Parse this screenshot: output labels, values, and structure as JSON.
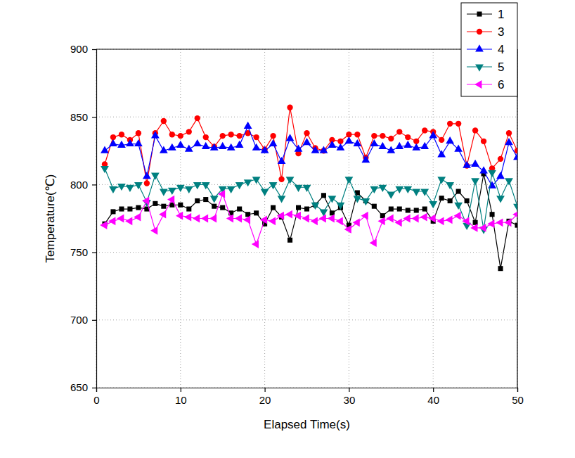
{
  "chart_data": {
    "type": "line",
    "x_label": "Elapsed Time(s)",
    "y_label": "Temperature(℃)",
    "x": [
      1,
      2,
      3,
      4,
      5,
      6,
      7,
      8,
      9,
      10,
      11,
      12,
      13,
      14,
      15,
      16,
      17,
      18,
      19,
      20,
      21,
      22,
      23,
      24,
      25,
      26,
      27,
      28,
      29,
      30,
      31,
      32,
      33,
      34,
      35,
      36,
      37,
      38,
      39,
      40,
      41,
      42,
      43,
      44,
      45,
      46,
      47,
      48,
      49,
      50
    ],
    "xlim": [
      0,
      50
    ],
    "xticks": [
      0,
      10,
      20,
      30,
      40,
      50
    ],
    "ylim": [
      650,
      900
    ],
    "yticks": [
      650,
      700,
      750,
      800,
      850,
      900
    ],
    "grid": true,
    "legend": "upper right",
    "series": [
      {
        "name": "1",
        "color": "#000000",
        "marker": "square",
        "line_style": "solid",
        "values": [
          771,
          780,
          782,
          782,
          783,
          782,
          786,
          784,
          785,
          785,
          782,
          788,
          789,
          784,
          783,
          779,
          782,
          778,
          779,
          771,
          783,
          776,
          759,
          783,
          782,
          785,
          792,
          779,
          783,
          770,
          794,
          788,
          784,
          777,
          782,
          782,
          781,
          781,
          782,
          773,
          790,
          788,
          795,
          788,
          772,
          808,
          778,
          738,
          773,
          770
        ]
      },
      {
        "name": "3",
        "color": "#ff0000",
        "marker": "circle",
        "line_style": "solid",
        "values": [
          815,
          835,
          837,
          833,
          838,
          801,
          838,
          847,
          837,
          836,
          839,
          849,
          835,
          828,
          836,
          837,
          836,
          838,
          835,
          826,
          836,
          804,
          857,
          823,
          838,
          827,
          825,
          833,
          832,
          837,
          837,
          820,
          836,
          836,
          834,
          839,
          835,
          832,
          840,
          839,
          833,
          845,
          845,
          814,
          840,
          832,
          812,
          819,
          838,
          825
        ]
      },
      {
        "name": "4",
        "color": "#0000ff",
        "marker": "triangle-up",
        "line_style": "solid",
        "values": [
          825,
          830,
          829,
          830,
          830,
          806,
          836,
          825,
          827,
          829,
          826,
          830,
          828,
          827,
          828,
          827,
          829,
          843,
          827,
          825,
          830,
          817,
          834,
          826,
          831,
          825,
          825,
          829,
          827,
          832,
          830,
          818,
          830,
          828,
          825,
          828,
          829,
          827,
          828,
          836,
          822,
          832,
          826,
          814,
          815,
          810,
          799,
          806,
          831,
          820
        ]
      },
      {
        "name": "5",
        "color": "#008080",
        "marker": "triangle-down",
        "line_style": "solid",
        "values": [
          812,
          797,
          799,
          798,
          800,
          787,
          807,
          795,
          796,
          798,
          797,
          800,
          800,
          790,
          797,
          797,
          800,
          802,
          804,
          795,
          800,
          790,
          804,
          798,
          798,
          785,
          780,
          790,
          785,
          804,
          790,
          788,
          797,
          798,
          793,
          797,
          797,
          795,
          795,
          786,
          804,
          800,
          785,
          770,
          803,
          767,
          809,
          790,
          803,
          784
        ]
      },
      {
        "name": "6",
        "color": "#ff00ff",
        "marker": "triangle-left",
        "line_style": "solid",
        "values": [
          770,
          773,
          775,
          773,
          776,
          788,
          766,
          778,
          789,
          777,
          776,
          775,
          775,
          775,
          793,
          775,
          775,
          774,
          756,
          774,
          773,
          777,
          778,
          777,
          775,
          773,
          775,
          775,
          773,
          767,
          772,
          777,
          757,
          773,
          775,
          772,
          775,
          775,
          776,
          775,
          773,
          774,
          777,
          773,
          768,
          768,
          771,
          772,
          772,
          778
        ]
      }
    ]
  }
}
